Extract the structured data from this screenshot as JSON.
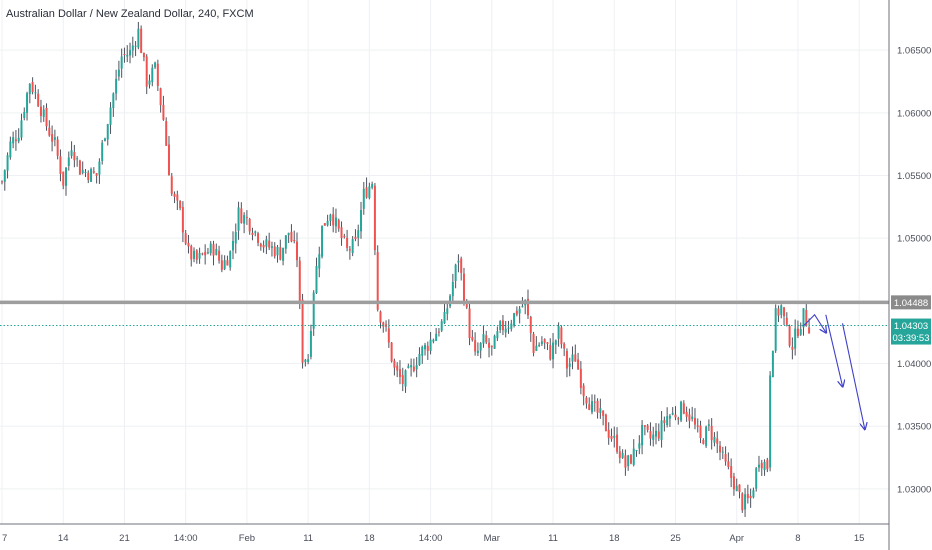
{
  "chart_title": "Australian Dollar / New Zealand Dollar, 240, FXCM",
  "colors": {
    "up": "#26a69a",
    "down": "#ef5350",
    "wick": "#4c525e",
    "resistance": "#9e9e9e",
    "current_price": "#26a69a",
    "arrow": "#3f40c8",
    "grid": "#eef0f3",
    "axis_bg": "#ffffff"
  },
  "price_tags": {
    "resistance": "1.04488",
    "current": "1.04303",
    "countdown": "03:39:53"
  },
  "chart_data": {
    "type": "candlestick",
    "title": "Australian Dollar / New Zealand Dollar, 240, FXCM",
    "symbol": "AUDNZD",
    "interval": "240",
    "source": "FXCM",
    "ylim": [
      1.0272,
      1.069
    ],
    "y_ticks": [
      1.03,
      1.035,
      1.04,
      1.045,
      1.05,
      1.055,
      1.06,
      1.065
    ],
    "y_tick_labels": [
      "1.03000",
      "1.03500",
      "1.04000",
      "",
      "1.05000",
      "1.05500",
      "1.06000",
      "1.06500"
    ],
    "x_ticks": [
      "7",
      "14",
      "21",
      "14:00",
      "Feb",
      "11",
      "18",
      "14:00",
      "Mar",
      "11",
      "18",
      "25",
      "Apr",
      "8",
      "15"
    ],
    "grid": true,
    "horizontal_lines": [
      {
        "label": "1.04488",
        "value": 1.04488,
        "style": "solid"
      },
      {
        "label": "1.04303",
        "value": 1.04303,
        "style": "dotted"
      }
    ],
    "price_path": [
      [
        0,
        1.0545
      ],
      [
        3,
        1.0575
      ],
      [
        6,
        1.0585
      ],
      [
        10,
        1.0625
      ],
      [
        13,
        1.061
      ],
      [
        16,
        1.059
      ],
      [
        19,
        1.0575
      ],
      [
        22,
        1.0545
      ],
      [
        25,
        1.0575
      ],
      [
        28,
        1.0555
      ],
      [
        31,
        1.0552
      ],
      [
        34,
        1.055
      ],
      [
        37,
        1.0585
      ],
      [
        40,
        1.0615
      ],
      [
        43,
        1.0645
      ],
      [
        46,
        1.0648
      ],
      [
        49,
        1.0665
      ],
      [
        52,
        1.0625
      ],
      [
        55,
        1.0635
      ],
      [
        58,
        1.0595
      ],
      [
        61,
        1.0535
      ],
      [
        64,
        1.052
      ],
      [
        67,
        1.0488
      ],
      [
        70,
        1.0482
      ],
      [
        73,
        1.0488
      ],
      [
        76,
        1.0492
      ],
      [
        79,
        1.0478
      ],
      [
        82,
        1.0488
      ],
      [
        85,
        1.052
      ],
      [
        88,
        1.0515
      ],
      [
        91,
        1.0505
      ],
      [
        94,
        1.0495
      ],
      [
        97,
        1.0492
      ],
      [
        100,
        1.0488
      ],
      [
        103,
        1.0505
      ],
      [
        106,
        1.0485
      ],
      [
        108,
        1.0405
      ],
      [
        110,
        1.0405
      ],
      [
        112,
        1.046
      ],
      [
        115,
        1.0508
      ],
      [
        118,
        1.0522
      ],
      [
        121,
        1.0505
      ],
      [
        124,
        1.049
      ],
      [
        127,
        1.0495
      ],
      [
        130,
        1.0535
      ],
      [
        133,
        1.0545
      ],
      [
        135,
        1.0445
      ],
      [
        138,
        1.0425
      ],
      [
        141,
        1.0395
      ],
      [
        144,
        1.0385
      ],
      [
        147,
        1.0395
      ],
      [
        150,
        1.0408
      ],
      [
        153,
        1.0415
      ],
      [
        156,
        1.0425
      ],
      [
        159,
        1.0435
      ],
      [
        162,
        1.0465
      ],
      [
        164,
        1.0485
      ],
      [
        166,
        1.0455
      ],
      [
        168,
        1.0425
      ],
      [
        170,
        1.0405
      ],
      [
        173,
        1.0418
      ],
      [
        176,
        1.041
      ],
      [
        179,
        1.0428
      ],
      [
        182,
        1.0432
      ],
      [
        185,
        1.0442
      ],
      [
        188,
        1.0448
      ],
      [
        191,
        1.0412
      ],
      [
        194,
        1.0418
      ],
      [
        197,
        1.0408
      ],
      [
        200,
        1.0425
      ],
      [
        203,
        1.0398
      ],
      [
        206,
        1.0405
      ],
      [
        209,
        1.0378
      ],
      [
        212,
        1.0365
      ],
      [
        215,
        1.0358
      ],
      [
        218,
        1.0345
      ],
      [
        221,
        1.0335
      ],
      [
        224,
        1.0318
      ],
      [
        227,
        1.0328
      ],
      [
        230,
        1.0345
      ],
      [
        233,
        1.034
      ],
      [
        236,
        1.0345
      ],
      [
        239,
        1.0358
      ],
      [
        242,
        1.036
      ],
      [
        245,
        1.0365
      ],
      [
        248,
        1.0355
      ],
      [
        251,
        1.0338
      ],
      [
        254,
        1.0348
      ],
      [
        257,
        1.0335
      ],
      [
        260,
        1.0318
      ],
      [
        263,
        1.0305
      ],
      [
        266,
        1.0288
      ],
      [
        269,
        1.0292
      ],
      [
        272,
        1.0325
      ],
      [
        275,
        1.0318
      ],
      [
        276,
        1.0395
      ],
      [
        278,
        1.0438
      ],
      [
        280,
        1.0445
      ],
      [
        282,
        1.0425
      ],
      [
        284,
        1.0415
      ],
      [
        286,
        1.0428
      ],
      [
        288,
        1.0438
      ],
      [
        290,
        1.043
      ]
    ],
    "projection_arrows": [
      {
        "points": [
          [
            288,
            1.043
          ],
          [
            292,
            1.0439
          ],
          [
            296,
            1.0425
          ]
        ]
      },
      {
        "points": [
          [
            296,
            1.0439
          ],
          [
            302,
            1.0382
          ]
        ]
      },
      {
        "points": [
          [
            302,
            1.0432
          ],
          [
            310,
            1.0348
          ]
        ]
      }
    ]
  }
}
